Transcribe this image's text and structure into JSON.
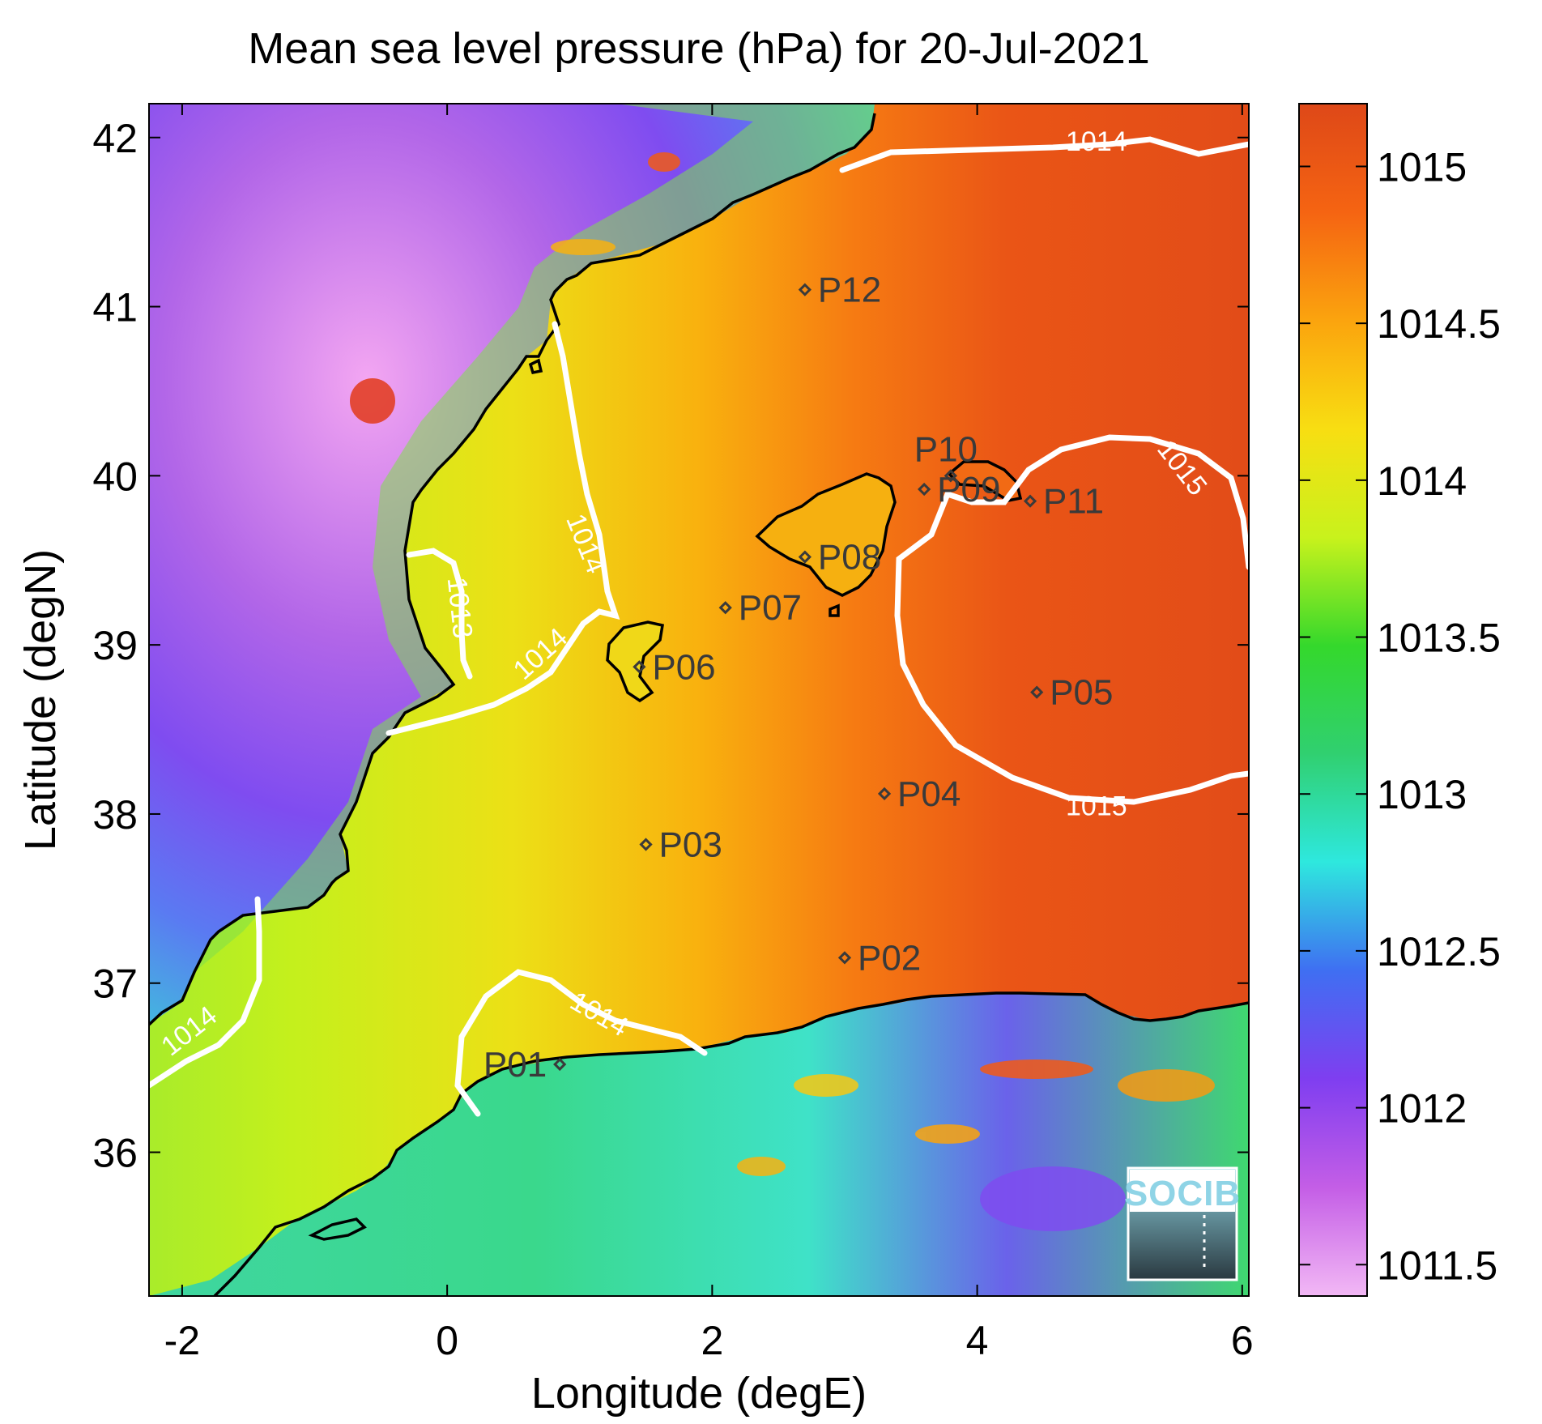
{
  "title": "Mean sea level pressure (hPa) for 20-Jul-2021",
  "xlabel": "Longitude (degE)",
  "ylabel": "Latitude (degN)",
  "map": {
    "xlim": [
      -2.25,
      6.05
    ],
    "ylim": [
      35.15,
      42.2
    ],
    "xticks": [
      {
        "value": -2,
        "label": "-2"
      },
      {
        "value": 0,
        "label": "0"
      },
      {
        "value": 2,
        "label": "2"
      },
      {
        "value": 4,
        "label": "4"
      },
      {
        "value": 6,
        "label": "6"
      }
    ],
    "yticks": [
      {
        "value": 36,
        "label": "36"
      },
      {
        "value": 37,
        "label": "37"
      },
      {
        "value": 38,
        "label": "38"
      },
      {
        "value": 39,
        "label": "39"
      },
      {
        "value": 40,
        "label": "40"
      },
      {
        "value": 41,
        "label": "41"
      },
      {
        "value": 42,
        "label": "42"
      }
    ],
    "stations": [
      {
        "label": "P01",
        "lon": 0.85,
        "lat": 36.52
      },
      {
        "label": "P02",
        "lon": 3.0,
        "lat": 37.15
      },
      {
        "label": "P03",
        "lon": 1.5,
        "lat": 37.82
      },
      {
        "label": "P04",
        "lon": 3.3,
        "lat": 38.12
      },
      {
        "label": "P05",
        "lon": 4.45,
        "lat": 38.72
      },
      {
        "label": "P06",
        "lon": 1.45,
        "lat": 38.87
      },
      {
        "label": "P07",
        "lon": 2.1,
        "lat": 39.22
      },
      {
        "label": "P08",
        "lon": 2.7,
        "lat": 39.52
      },
      {
        "label": "P09",
        "lon": 3.6,
        "lat": 39.92
      },
      {
        "label": "P10",
        "lon": 3.8,
        "lat": 40.0
      },
      {
        "label": "P11",
        "lon": 4.4,
        "lat": 39.85
      },
      {
        "label": "P12",
        "lon": 2.7,
        "lat": 41.1
      }
    ],
    "contour_labels": [
      {
        "text": "1014",
        "lon": 4.9,
        "lat": 41.98,
        "rot": 0
      },
      {
        "text": "1015",
        "lon": 5.55,
        "lat": 40.05,
        "rot": 52
      },
      {
        "text": "1015",
        "lon": 4.9,
        "lat": 38.05,
        "rot": 0
      },
      {
        "text": "1014",
        "lon": 1.05,
        "lat": 39.6,
        "rot": 68
      },
      {
        "text": "1013",
        "lon": 0.1,
        "lat": 39.22,
        "rot": 84
      },
      {
        "text": "1014",
        "lon": 0.7,
        "lat": 38.95,
        "rot": -42
      },
      {
        "text": "1014",
        "lon": 1.15,
        "lat": 36.82,
        "rot": 30
      },
      {
        "text": "1014",
        "lon": -1.95,
        "lat": 36.72,
        "rot": -38
      }
    ]
  },
  "colorbar": {
    "label": "",
    "range": [
      1011.4,
      1015.2
    ],
    "ticks": [
      {
        "value": 1011.5,
        "label": "1011.5"
      },
      {
        "value": 1012,
        "label": "1012"
      },
      {
        "value": 1012.5,
        "label": "1012.5"
      },
      {
        "value": 1013,
        "label": "1013"
      },
      {
        "value": 1013.5,
        "label": "1013.5"
      },
      {
        "value": 1014,
        "label": "1014"
      },
      {
        "value": 1014.5,
        "label": "1014.5"
      },
      {
        "value": 1015,
        "label": "1015"
      }
    ],
    "stops": [
      "#f2b8f5",
      "#c45ee6",
      "#7f3ef0",
      "#3f6ff2",
      "#2ee8de",
      "#30d070",
      "#34d82c",
      "#c8f21c",
      "#f8de12",
      "#fba40e",
      "#f56412",
      "#de4818"
    ]
  },
  "logo": {
    "text": "SOCIB"
  },
  "colors": {
    "contour": "#ffffff",
    "coast": "#000000",
    "station": "#3a3a3a"
  }
}
